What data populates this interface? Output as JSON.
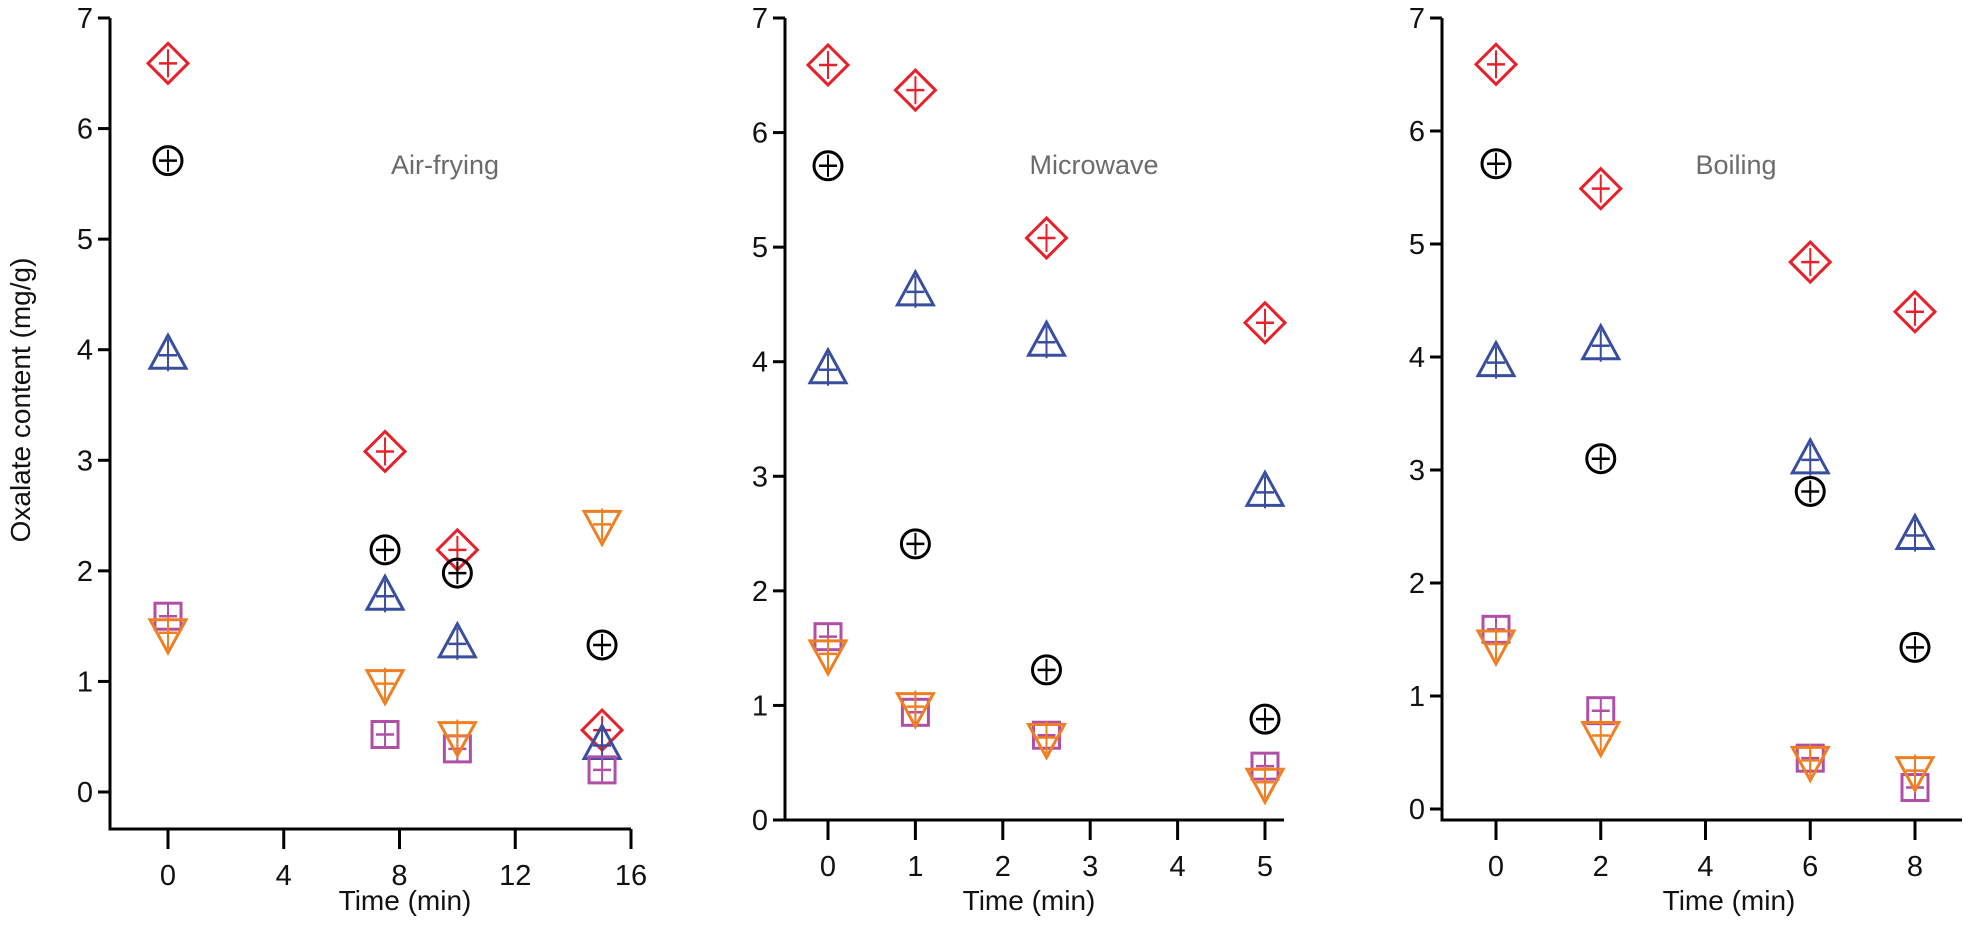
{
  "chart_data": [
    {
      "type": "scatter",
      "title": "Air-frying",
      "xlabel": "Time (min)",
      "ylabel": "Oxalate content (mg/g)",
      "xlim": [
        -2.0,
        16
      ],
      "ylim": [
        0,
        7
      ],
      "xticks": [
        0,
        4,
        8,
        12,
        16
      ],
      "yticks": [
        0,
        1,
        2,
        3,
        4,
        5,
        6,
        7
      ],
      "grid": false,
      "series": [
        {
          "marker": "diamond",
          "color": "#e8202a",
          "x": [
            0,
            7.5,
            10,
            15
          ],
          "y": [
            6.59,
            3.08,
            2.19,
            0.56
          ]
        },
        {
          "marker": "circle",
          "color": "#000000",
          "x": [
            0,
            7.5,
            10,
            15
          ],
          "y": [
            5.71,
            2.19,
            1.98,
            1.33
          ]
        },
        {
          "marker": "triangle-up",
          "color": "#3a4ea0",
          "x": [
            0,
            7.5,
            10,
            15
          ],
          "y": [
            3.95,
            1.77,
            1.34,
            0.42
          ]
        },
        {
          "marker": "square",
          "color": "#b04fa8",
          "x": [
            0,
            7.5,
            10,
            15
          ],
          "y": [
            1.59,
            0.52,
            0.39,
            0.2
          ]
        },
        {
          "marker": "triangle-down",
          "color": "#f07f22",
          "x": [
            0,
            7.5,
            10,
            15
          ],
          "y": [
            1.44,
            0.98,
            0.51,
            2.42
          ]
        }
      ]
    },
    {
      "type": "scatter",
      "title": "Microwave",
      "xlabel": "Time (min)",
      "ylabel": "",
      "xlim": [
        -0.48,
        5.5
      ],
      "ylim": [
        0,
        7
      ],
      "xticks": [
        0,
        1,
        2,
        3,
        4,
        5
      ],
      "yticks": [
        0,
        1,
        2,
        3,
        4,
        5,
        6,
        7
      ],
      "grid": false,
      "series": [
        {
          "marker": "diamond",
          "color": "#e8202a",
          "x": [
            0,
            1,
            2.5,
            5
          ],
          "y": [
            6.59,
            6.37,
            5.08,
            4.34
          ]
        },
        {
          "marker": "circle",
          "color": "#000000",
          "x": [
            0,
            1,
            2.5,
            5
          ],
          "y": [
            5.71,
            2.41,
            1.31,
            0.88
          ]
        },
        {
          "marker": "triangle-up",
          "color": "#3a4ea0",
          "x": [
            0,
            1,
            2.5,
            5
          ],
          "y": [
            3.93,
            4.61,
            4.17,
            2.86
          ]
        },
        {
          "marker": "square",
          "color": "#b04fa8",
          "x": [
            0,
            1,
            2.5,
            5
          ],
          "y": [
            1.6,
            0.94,
            0.74,
            0.47
          ]
        },
        {
          "marker": "triangle-down",
          "color": "#f07f22",
          "x": [
            0,
            1,
            2.5,
            5
          ],
          "y": [
            1.45,
            0.99,
            0.72,
            0.33
          ]
        }
      ]
    },
    {
      "type": "scatter",
      "title": "Boiling",
      "xlabel": "Time (min)",
      "ylabel": "",
      "xlim": [
        -1.0,
        9
      ],
      "ylim": [
        0,
        7
      ],
      "xticks": [
        0,
        2,
        4,
        6,
        8
      ],
      "yticks": [
        0,
        1,
        2,
        3,
        4,
        5,
        6,
        7
      ],
      "grid": false,
      "series": [
        {
          "marker": "diamond",
          "color": "#e8202a",
          "x": [
            0,
            2,
            6,
            8
          ],
          "y": [
            6.59,
            5.49,
            4.84,
            4.4
          ]
        },
        {
          "marker": "circle",
          "color": "#000000",
          "x": [
            0,
            2,
            6,
            8
          ],
          "y": [
            5.71,
            3.1,
            2.81,
            1.43
          ]
        },
        {
          "marker": "triangle-up",
          "color": "#3a4ea0",
          "x": [
            0,
            2,
            6,
            8
          ],
          "y": [
            3.95,
            4.1,
            3.09,
            2.42
          ]
        },
        {
          "marker": "square",
          "color": "#b04fa8",
          "x": [
            0,
            2,
            6,
            8
          ],
          "y": [
            1.59,
            0.87,
            0.45,
            0.19
          ]
        },
        {
          "marker": "triangle-down",
          "color": "#f07f22",
          "x": [
            0,
            2,
            6,
            8
          ],
          "y": [
            1.46,
            0.65,
            0.43,
            0.34
          ]
        }
      ]
    }
  ]
}
